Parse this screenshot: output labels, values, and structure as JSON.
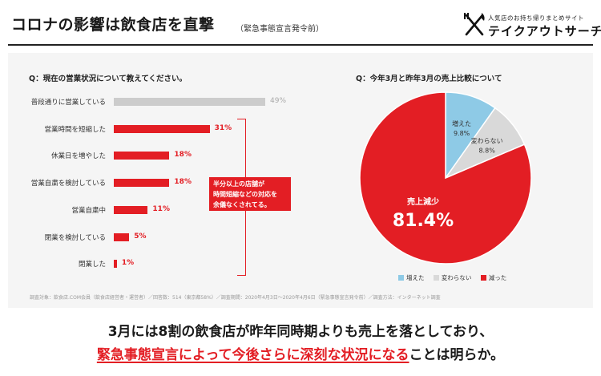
{
  "header": {
    "title": "コロナの影響は飲食店を直撃",
    "subtitle": "（緊急事態宣言発令前）",
    "logo_small": "人気店のお持ち帰りまとめサイト",
    "logo_big": "テイクアウトサーチ",
    "logo_icon": "fork-and-knife-icon"
  },
  "colors": {
    "accent": "#e31e24",
    "bar_gray": "#cccccc",
    "pie_increased": "#8ecae6",
    "pie_unchanged": "#d9d9d9",
    "pie_decreased": "#e31e24"
  },
  "chart_data": [
    {
      "type": "bar",
      "orientation": "horizontal",
      "title": "Q：現在の営業状況について教えてください。",
      "categories": [
        "普段通りに営業している",
        "営業時間を短縮した",
        "休業日を増やした",
        "営業自粛を検討している",
        "営業自粛中",
        "閉業を検討している",
        "閉業した"
      ],
      "values": [
        49,
        31,
        18,
        18,
        11,
        5,
        1
      ],
      "value_labels": [
        "49%",
        "31%",
        "18%",
        "18%",
        "11%",
        "5%",
        "1%"
      ],
      "unit": "%",
      "xlim": [
        0,
        49
      ],
      "grid": false,
      "bar_colors": [
        "#cccccc",
        "#e31e24",
        "#e31e24",
        "#e31e24",
        "#e31e24",
        "#e31e24",
        "#e31e24"
      ],
      "annotation": {
        "lines": [
          "半分以上の店舗が",
          "時間短縮などの対応を",
          "余儀なくされてる。"
        ]
      }
    },
    {
      "type": "pie",
      "title": "Q：今年3月と昨年3月の売上比較について",
      "slices": [
        {
          "name": "増えた",
          "value": 9.8,
          "label": "9.8%"
        },
        {
          "name": "変わらない",
          "value": 8.8,
          "label": "8.8%"
        },
        {
          "name": "減った",
          "value": 81.4,
          "label": "81.4%",
          "inner_label": "売上減少"
        }
      ],
      "legend": [
        "増えた",
        "変わらない",
        "減った"
      ],
      "legend_position": "bottom"
    }
  ],
  "source": "調査対象：飲食店.COM会員（飲食店経営者・運営者）／回答数：514（東京都58%）／調査期間：2020年4月3日〜2020年4月6日（緊急事態宣言発令前）／調査方法：インターネット調査",
  "footer": {
    "line1": "3月には8割の飲食店が昨年同時期よりも売上を落としており、",
    "line2_emphasis": "緊急事態宣言によって今後さらに深刻な状況になる",
    "line2_rest": "ことは明らか。"
  }
}
